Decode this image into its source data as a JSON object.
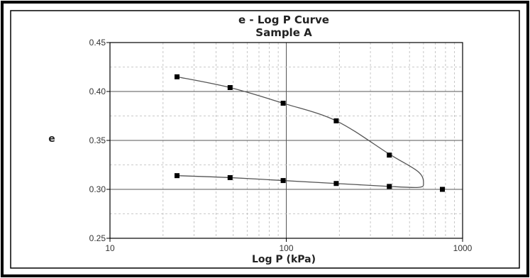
{
  "chart_data": {
    "type": "scatter",
    "title": "e - Log P Curve",
    "subtitle": "Sample A",
    "xlabel": "Log P (kPa)",
    "ylabel": "e",
    "x_scale": "log",
    "xlim": [
      10,
      1000
    ],
    "ylim": [
      0.25,
      0.45
    ],
    "x_ticks": [
      "10",
      "100",
      "1000"
    ],
    "y_ticks": [
      "0.25",
      "0.30",
      "0.35",
      "0.40",
      "0.45"
    ],
    "grid": true,
    "legend": "none",
    "series": [
      {
        "x": [
          24,
          48,
          96,
          192,
          384,
          768
        ],
        "y": [
          0.415,
          0.404,
          0.388,
          0.37,
          0.335,
          0.3
        ]
      },
      {
        "x": [
          24,
          48,
          96,
          192,
          384
        ],
        "y": [
          0.314,
          0.312,
          0.309,
          0.306,
          0.303
        ]
      }
    ],
    "curve_segments": [
      {
        "x": [
          24,
          48,
          96,
          192,
          384,
          560,
          600,
          560,
          384
        ],
        "y": [
          0.415,
          0.404,
          0.388,
          0.37,
          0.336,
          0.318,
          0.306,
          0.302,
          0.303
        ]
      },
      {
        "x": [
          24,
          48,
          96,
          192,
          384
        ],
        "y": [
          0.314,
          0.312,
          0.309,
          0.306,
          0.303
        ]
      }
    ],
    "colors": {
      "frame": "#000000",
      "grid": "#b9b9b9",
      "marker": "#000000",
      "line": "#555555"
    }
  }
}
